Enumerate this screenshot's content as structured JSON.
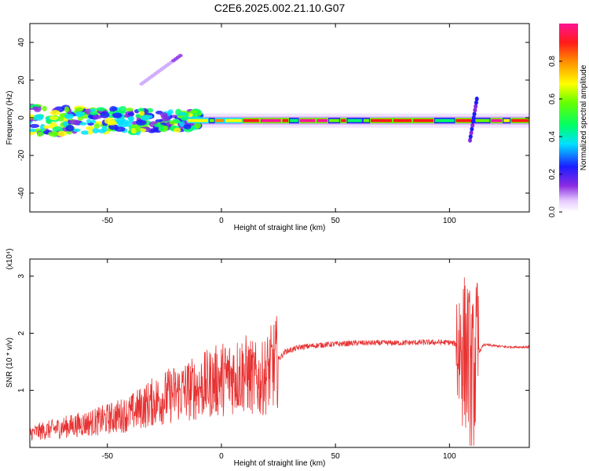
{
  "title": "C2E6.2025.002.21.10.G07",
  "chart_data": [
    {
      "type": "heatmap",
      "xlabel": "Height of straight line (km)",
      "ylabel": "Frequency (Hz)",
      "xlim": [
        -84,
        135
      ],
      "ylim": [
        -50,
        50
      ],
      "xticks": [
        -50,
        0,
        50,
        100
      ],
      "yticks": [
        -40,
        -20,
        0,
        20,
        40
      ],
      "grid": false,
      "colorbar": {
        "label": "Normalized spectral amplitude",
        "range": [
          0,
          1
        ],
        "ticks": [
          "0.0",
          "0.2",
          "0.4",
          "0.6",
          "0.8"
        ]
      },
      "ridge": {
        "frequency_hz": -1.5,
        "x_start": -15,
        "x_end": 135,
        "noisy_region": [
          -84,
          -15
        ],
        "spike": {
          "x": 110,
          "freq_range": [
            -12,
            10
          ]
        },
        "secondary_trace": {
          "x": [
            -35,
            -18
          ],
          "freq": [
            18,
            33
          ]
        }
      }
    },
    {
      "type": "line",
      "xlabel": "Height of straight line (km)",
      "ylabel": "SNR (10 * v/v)",
      "y_multiplier": "(x10⁴)",
      "xlim": [
        -84,
        135
      ],
      "ylim": [
        0,
        3.3
      ],
      "xticks": [
        -50,
        0,
        50,
        100
      ],
      "yticks": [
        1,
        2,
        3
      ],
      "grid": false,
      "color": "#e83232",
      "envelope": {
        "x": [
          -84,
          -70,
          -55,
          -40,
          -30,
          -20,
          -10,
          0,
          10,
          17,
          22,
          28,
          35,
          45,
          60,
          75,
          90,
          100,
          104,
          108,
          110,
          112,
          115,
          125,
          135
        ],
        "y": [
          0.25,
          0.35,
          0.45,
          0.6,
          0.8,
          0.95,
          1.05,
          1.2,
          1.3,
          1.15,
          1.4,
          1.68,
          1.76,
          1.8,
          1.83,
          1.83,
          1.84,
          1.84,
          1.8,
          1.6,
          1.2,
          1.6,
          1.8,
          1.76,
          1.76
        ]
      }
    }
  ]
}
